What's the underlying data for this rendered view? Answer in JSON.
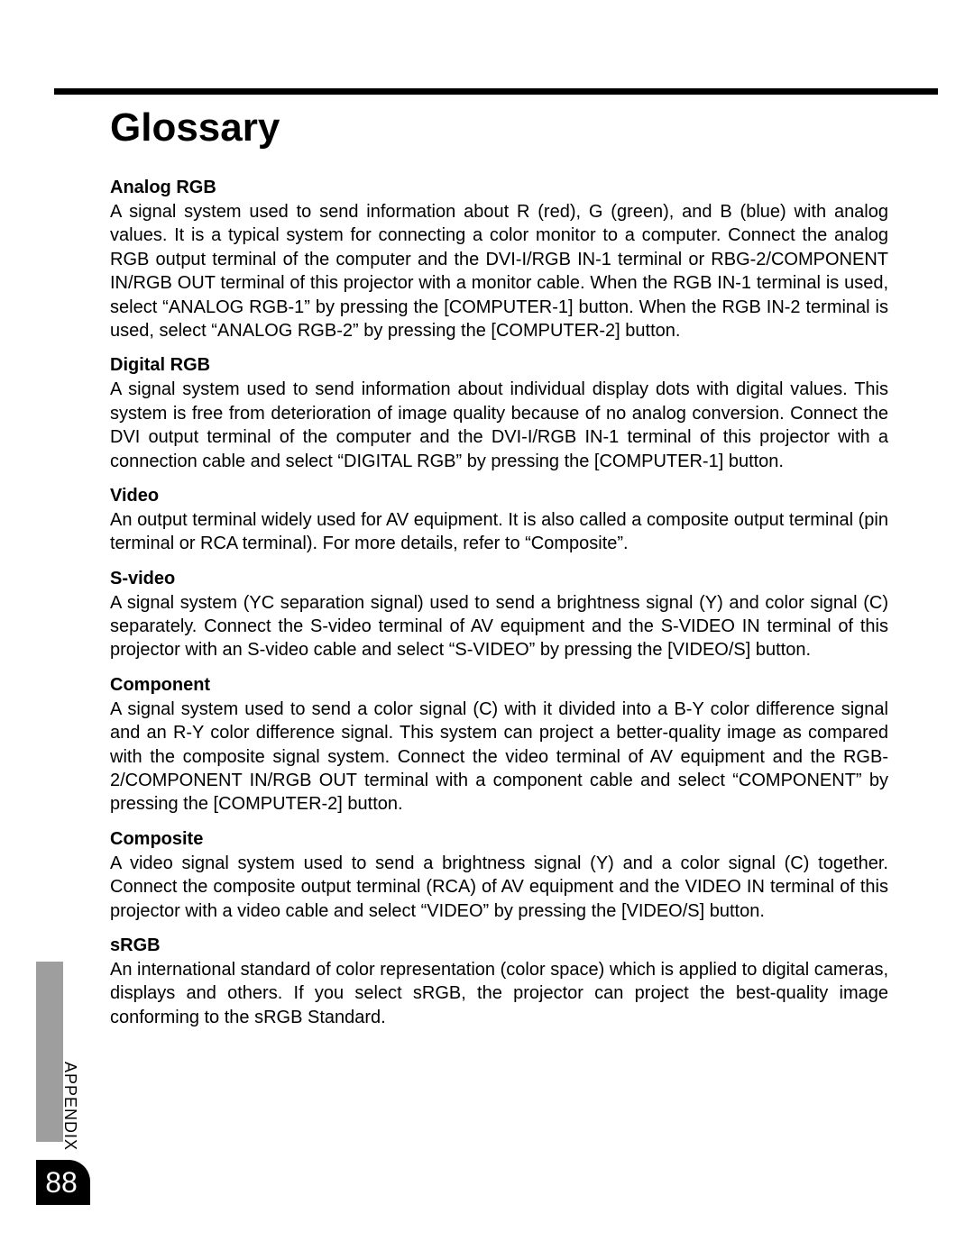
{
  "page": {
    "title": "Glossary",
    "side_tab_label": "APPENDIX",
    "page_number": "88",
    "bg_color": "#ffffff",
    "text_color": "#000000",
    "rule_color": "#000000",
    "sidetab_color": "#9e9e9e",
    "title_fontsize": 44,
    "body_fontsize": 20
  },
  "glossary": [
    {
      "term": "Analog RGB",
      "def": "A signal system used to send information about R (red), G (green), and B (blue) with analog values. It is a typical system for connecting a color monitor to a computer. Connect the analog RGB output terminal of the computer and the DVI-I/RGB IN-1 terminal or RBG-2/COMPONENT IN/RGB OUT terminal of this projector with a monitor cable. When the RGB IN-1 terminal is used, select “ANALOG RGB-1” by pressing the [COMPUTER-1] button. When the RGB IN-2 terminal is used, select “ANALOG RGB-2” by pressing the [COMPUTER-2] button."
    },
    {
      "term": "Digital RGB",
      "def": "A signal system used to send information about individual display dots with digital values. This system is free from deterioration of image quality because of no analog conversion. Connect the DVI output terminal of the computer and the DVI-I/RGB IN-1 terminal of this projector with a connection cable and select “DIGITAL RGB” by pressing the [COMPUTER-1] button."
    },
    {
      "term": "Video",
      "def": "An output terminal widely used for AV equipment. It is also called a composite output terminal (pin terminal or RCA terminal). For more details, refer to “Composite”."
    },
    {
      "term": "S-video",
      "def": "A signal system (YC separation signal) used to send a brightness signal (Y) and color signal (C) separately. Connect the S-video terminal of AV equipment and the S-VIDEO IN terminal of this projector with an S-video cable and select “S-VIDEO” by pressing the [VIDEO/S] button."
    },
    {
      "term": "Component",
      "def": "A signal system used to send a color signal (C) with it divided into a B-Y color difference signal and an R-Y color difference signal. This system can project a better-quality image as compared with the composite signal system. Connect the video terminal of AV equipment and the RGB-2/COMPONENT IN/RGB OUT terminal with a component cable and select “COMPONENT” by pressing the [COMPUTER-2] button."
    },
    {
      "term": "Composite",
      "def": "A video signal system used to send a brightness signal (Y) and a color signal (C) together. Connect the composite output terminal (RCA) of AV equipment and the VIDEO IN terminal of this projector with a video cable and select “VIDEO” by pressing the [VIDEO/S] button."
    },
    {
      "term": "sRGB",
      "def": "An international standard of color representation (color space) which is applied to digital cameras, displays and others. If you select sRGB, the projector can project the best-quality image conforming to the sRGB Standard."
    }
  ]
}
